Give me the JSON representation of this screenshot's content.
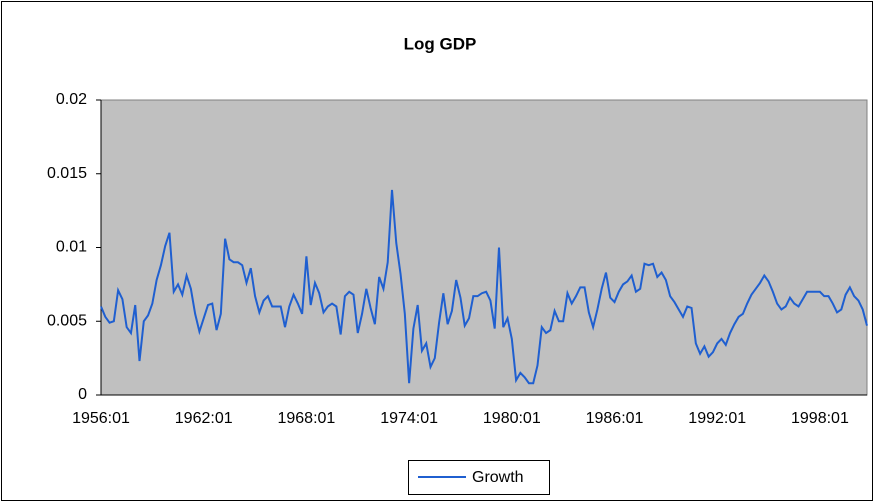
{
  "chart_data": {
    "type": "line",
    "title": "Log GDP",
    "categories": [
      "1956:01",
      null,
      null,
      null,
      null,
      null,
      null,
      null,
      null,
      null,
      null,
      null,
      null,
      null,
      null,
      null,
      null,
      null,
      null,
      null,
      null,
      null,
      null,
      null,
      "1962:01",
      null,
      null,
      null,
      null,
      null,
      null,
      null,
      null,
      null,
      null,
      null,
      null,
      null,
      null,
      null,
      null,
      null,
      null,
      null,
      null,
      null,
      null,
      null,
      "1968:01",
      null,
      null,
      null,
      null,
      null,
      null,
      null,
      null,
      null,
      null,
      null,
      null,
      null,
      null,
      null,
      null,
      null,
      null,
      null,
      null,
      null,
      null,
      null,
      "1974:01",
      null,
      null,
      null,
      null,
      null,
      null,
      null,
      null,
      null,
      null,
      null,
      null,
      null,
      null,
      null,
      null,
      null,
      null,
      null,
      null,
      null,
      null,
      null,
      "1980:01",
      null,
      null,
      null,
      null,
      null,
      null,
      null,
      null,
      null,
      null,
      null,
      null,
      null,
      null,
      null,
      null,
      null,
      null,
      null,
      null,
      null,
      null,
      null,
      "1986:01",
      null,
      null,
      null,
      null,
      null,
      null,
      null,
      null,
      null,
      null,
      null,
      null,
      null,
      null,
      null,
      null,
      null,
      null,
      null,
      null,
      null,
      null,
      null,
      "1992:01",
      null,
      null,
      null,
      null,
      null,
      null,
      null,
      null,
      null,
      null,
      null,
      null,
      null,
      null,
      null,
      null,
      null,
      null,
      null,
      null,
      null,
      null,
      null,
      "1998:01",
      null,
      null,
      null,
      null,
      null,
      null,
      null,
      null,
      null,
      null,
      null
    ],
    "series": [
      {
        "name": "Growth",
        "color": "#1f5fd0",
        "values": [
          0.006,
          0.0053,
          0.0049,
          0.005,
          0.0071,
          0.0065,
          0.0046,
          0.0042,
          0.0061,
          0.0023,
          0.005,
          0.0054,
          0.0062,
          0.0078,
          0.0088,
          0.0101,
          0.011,
          0.007,
          0.0075,
          0.0068,
          0.0081,
          0.0072,
          0.0055,
          0.0043,
          0.0052,
          0.0061,
          0.0062,
          0.0044,
          0.0055,
          0.0106,
          0.0092,
          0.009,
          0.009,
          0.0088,
          0.0076,
          0.0086,
          0.0067,
          0.0056,
          0.0064,
          0.0067,
          0.006,
          0.006,
          0.006,
          0.0046,
          0.006,
          0.0068,
          0.0062,
          0.0055,
          0.0094,
          0.0061,
          0.0076,
          0.0069,
          0.0056,
          0.006,
          0.0062,
          0.006,
          0.0041,
          0.0067,
          0.007,
          0.0068,
          0.0042,
          0.0055,
          0.0072,
          0.0059,
          0.0048,
          0.008,
          0.0072,
          0.009,
          0.0139,
          0.0103,
          0.0082,
          0.0055,
          0.0008,
          0.0045,
          0.0061,
          0.003,
          0.0035,
          0.0019,
          0.0025,
          0.0049,
          0.0069,
          0.0048,
          0.0057,
          0.0078,
          0.0066,
          0.0047,
          0.0052,
          0.0067,
          0.0067,
          0.0069,
          0.007,
          0.0064,
          0.0045,
          0.01,
          0.0046,
          0.0052,
          0.0038,
          0.001,
          0.0015,
          0.0012,
          0.0008,
          0.0008,
          0.002,
          0.0046,
          0.0042,
          0.0044,
          0.0057,
          0.005,
          0.005,
          0.0069,
          0.0062,
          0.0067,
          0.0073,
          0.0073,
          0.0056,
          0.0046,
          0.0058,
          0.0072,
          0.0083,
          0.0066,
          0.0063,
          0.007,
          0.0075,
          0.0077,
          0.0081,
          0.007,
          0.0072,
          0.0089,
          0.0088,
          0.0089,
          0.008,
          0.0083,
          0.0078,
          0.0067,
          0.0063,
          0.0058,
          0.0053,
          0.006,
          0.0059,
          0.0035,
          0.0028,
          0.0033,
          0.0026,
          0.0029,
          0.0035,
          0.0038,
          0.0034,
          0.0042,
          0.0048,
          0.0053,
          0.0055,
          0.0062,
          0.0068,
          0.0072,
          0.0076,
          0.0081,
          0.0077,
          0.007,
          0.0062,
          0.0058,
          0.006,
          0.0066,
          0.0062,
          0.006,
          0.0065,
          0.007,
          0.007,
          0.007,
          0.007,
          0.0067,
          0.0067,
          0.0062,
          0.0056,
          0.0058,
          0.0068,
          0.0073,
          0.0067,
          0.0064,
          0.0058,
          0.0047
        ]
      }
    ],
    "ylim": [
      0,
      0.02
    ],
    "yticks": [
      0,
      0.005,
      0.01,
      0.015,
      0.02
    ],
    "grid": false,
    "plot_background": "#c0c0c0",
    "legend": "bottom"
  }
}
